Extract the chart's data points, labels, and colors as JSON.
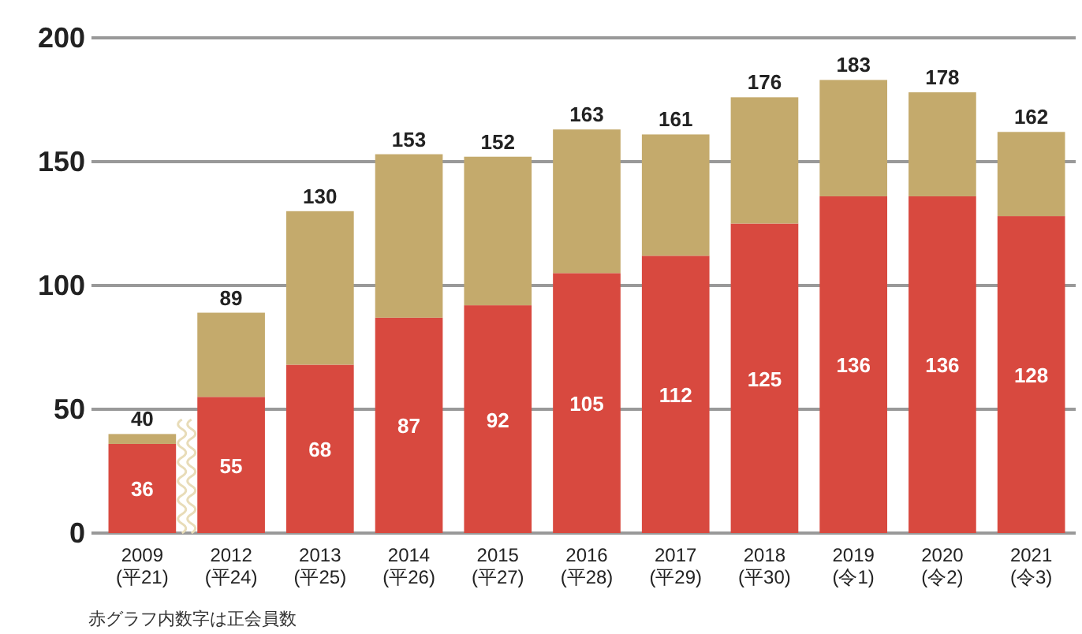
{
  "chart_data": {
    "type": "bar",
    "stacked": true,
    "categories": [
      "2009\n(平21)",
      "2012\n(平24)",
      "2013\n(平25)",
      "2014\n(平26)",
      "2015\n(平27)",
      "2016\n(平28)",
      "2017\n(平29)",
      "2018\n(平30)",
      "2019\n(令1)",
      "2020\n(令2)",
      "2021\n(令3)"
    ],
    "series": [
      {
        "color": "#d8493f",
        "values": [
          36,
          55,
          68,
          87,
          92,
          105,
          112,
          125,
          136,
          136,
          128
        ],
        "value_labels": [
          "36",
          "55",
          "68",
          "87",
          "92",
          "105",
          "112",
          "125",
          "136",
          "136",
          "128"
        ]
      },
      {
        "color": "#c4aa6c",
        "values": [
          4,
          34,
          62,
          66,
          60,
          58,
          49,
          51,
          47,
          42,
          34
        ]
      }
    ],
    "totals": [
      "40",
      "89",
      "130",
      "153",
      "152",
      "163",
      "161",
      "176",
      "183",
      "178",
      "162"
    ],
    "ylim": [
      0,
      200
    ],
    "yticks": [
      0,
      50,
      100,
      150,
      200
    ],
    "grid": "y",
    "annotations": [
      "赤グラフ内数字は正会員数"
    ]
  }
}
